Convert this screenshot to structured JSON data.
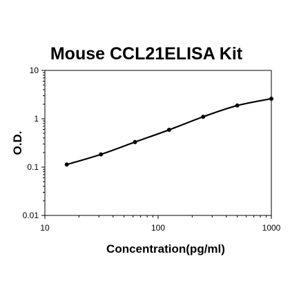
{
  "chart_data": {
    "type": "line",
    "title": "Mouse CCL21ELISA Kit",
    "xlabel": "Concentration(pg/ml)",
    "ylabel": "O.D.",
    "x_scale": "log",
    "y_scale": "log",
    "xlim": [
      10,
      1000
    ],
    "ylim": [
      0.01,
      10
    ],
    "x_ticks": [
      10,
      100,
      1000
    ],
    "x_tick_labels": [
      "10",
      "100",
      "1000"
    ],
    "y_ticks": [
      0.01,
      0.1,
      1,
      10
    ],
    "y_tick_labels": [
      "0.01",
      "0.1",
      "1",
      "10"
    ],
    "grid": false,
    "legend": "none",
    "series": [
      {
        "x": [
          15.6,
          31.25,
          62.5,
          125,
          250,
          500,
          1000
        ],
        "y": [
          0.113,
          0.183,
          0.33,
          0.59,
          1.1,
          1.88,
          2.6
        ]
      }
    ],
    "colors": {
      "line": "#000000",
      "axis": "#000000"
    }
  }
}
